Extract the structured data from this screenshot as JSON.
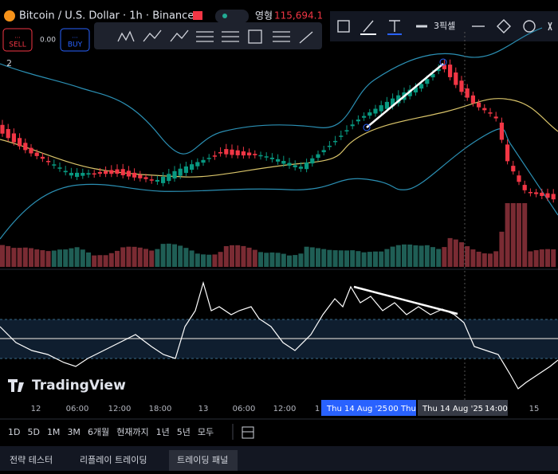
{
  "header": {
    "symbol": "Bitcoin / U.S. Dollar · 1h · Binance",
    "label": "영형",
    "price": "115,694.1"
  },
  "trade": {
    "sell": "SELL",
    "spread": "0.00",
    "buy": "BUY",
    "dots": "..."
  },
  "toolbar": {
    "line_width": "3픽셀"
  },
  "legend_toggle": "2",
  "watermark": "TradingView",
  "time_axis": [
    "12",
    "06:00",
    "12:00",
    "18:00",
    "13",
    "06:00",
    "12:00",
    "1",
    "15"
  ],
  "crosshair": {
    "left": "Thu 14 Aug '25",
    "left_mid": "00",
    "left_end": "Thu",
    "right": "Thu 14 Aug '25",
    "right_time": "14:00"
  },
  "ranges": [
    "1D",
    "5D",
    "1M",
    "3M",
    "6개월",
    "현재까지",
    "1년",
    "5년",
    "모두"
  ],
  "tabs": [
    "전략 테스터",
    "리플레이 트레이딩",
    "트레이딩 패널"
  ]
}
